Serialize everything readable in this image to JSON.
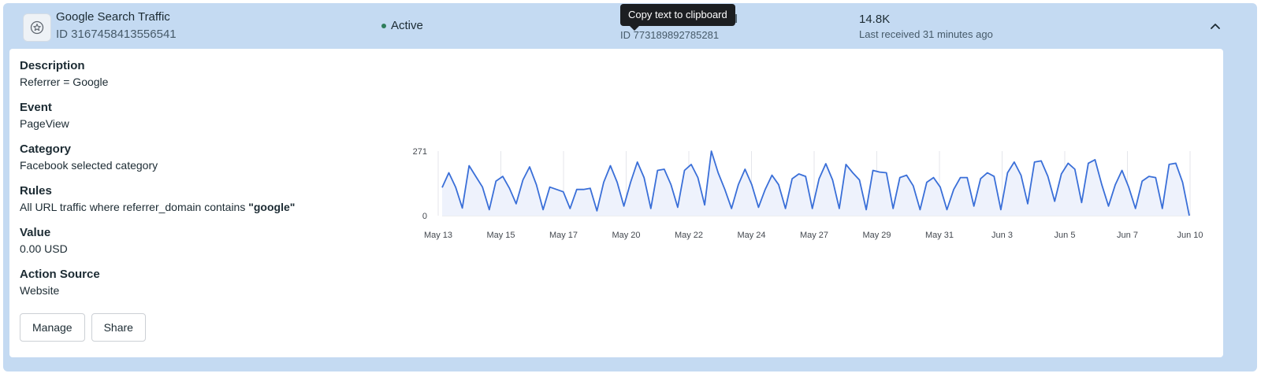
{
  "header": {
    "title": "Google Search Traffic",
    "id_label": "ID 3167458413556541",
    "status": "Active",
    "pixel_name_visible": "el",
    "pixel_id": "ID 773189892785281",
    "tooltip": "Copy text to clipboard",
    "event_count": "14.8K",
    "last_received": "Last received 31 minutes ago"
  },
  "details": {
    "description_label": "Description",
    "description_value": "Referrer = Google",
    "event_label": "Event",
    "event_value": "PageView",
    "category_label": "Category",
    "category_value": "Facebook selected category",
    "rules_label": "Rules",
    "rules_prefix": "All URL traffic where referrer_domain contains ",
    "rules_keyword": "\"google\"",
    "value_label": "Value",
    "value_value": "0.00 USD",
    "action_source_label": "Action Source",
    "action_source_value": "Website"
  },
  "buttons": {
    "manage": "Manage",
    "share": "Share"
  },
  "icons": {
    "app": "badge-star-icon",
    "collapse": "chevron-up-icon"
  },
  "colors": {
    "accent": "#c4daf2",
    "line": "#3a6fd8",
    "area": "#eef2fc",
    "status_dot": "#2e7d5b"
  },
  "chart_data": {
    "type": "area",
    "ylim": [
      0,
      271
    ],
    "yticks": [
      "0",
      "271"
    ],
    "xticks": [
      "May 13",
      "May 15",
      "May 17",
      "May 20",
      "May 22",
      "May 24",
      "May 27",
      "May 29",
      "May 31",
      "Jun 3",
      "Jun 5",
      "Jun 7",
      "Jun 10"
    ],
    "grid": "vertical",
    "legend": "none",
    "values": [
      118,
      180,
      120,
      32,
      210,
      165,
      120,
      25,
      145,
      165,
      115,
      50,
      150,
      205,
      130,
      25,
      120,
      110,
      100,
      30,
      110,
      110,
      115,
      20,
      140,
      210,
      140,
      40,
      140,
      225,
      160,
      30,
      190,
      195,
      130,
      35,
      190,
      215,
      160,
      45,
      271,
      180,
      110,
      30,
      130,
      195,
      130,
      35,
      110,
      170,
      130,
      30,
      155,
      175,
      165,
      30,
      155,
      218,
      150,
      30,
      215,
      180,
      150,
      25,
      190,
      183,
      180,
      30,
      160,
      170,
      125,
      25,
      140,
      160,
      120,
      25,
      110,
      160,
      160,
      40,
      155,
      180,
      165,
      25,
      180,
      225,
      170,
      50,
      225,
      230,
      165,
      60,
      175,
      220,
      195,
      55,
      220,
      235,
      130,
      40,
      130,
      190,
      120,
      30,
      145,
      165,
      160,
      30,
      215,
      220,
      140,
      0
    ]
  }
}
